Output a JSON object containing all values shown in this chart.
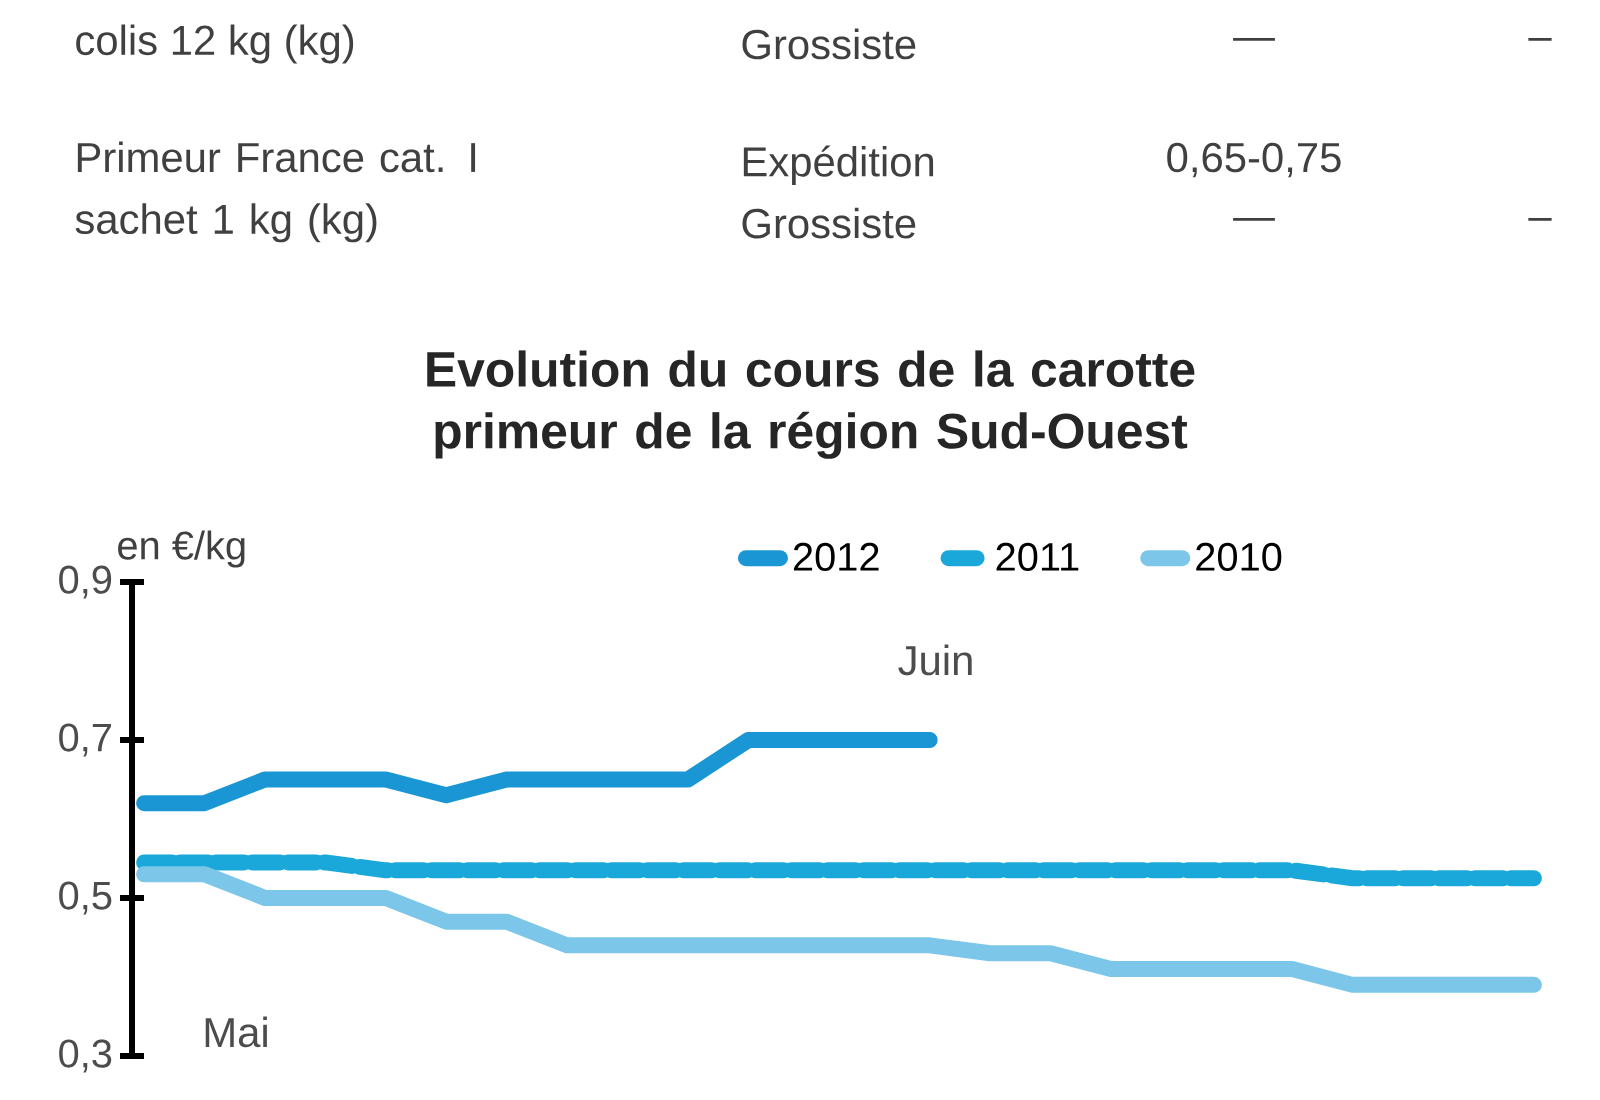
{
  "chart_data": {
    "type": "line",
    "title": "Evolution du cours de la carotte primeur de la région Sud-Ouest",
    "ylabel": "en €/kg",
    "categories": [
      null,
      null,
      null,
      null,
      null,
      null,
      null,
      null,
      null,
      null,
      null,
      null,
      null,
      null,
      null,
      null,
      null,
      null,
      null,
      null,
      null,
      null,
      null,
      null
    ],
    "series": [
      {
        "name": "2012",
        "color": "#1a96d4",
        "line_style": "solid",
        "values": [
          0.62,
          0.62,
          0.65,
          0.65,
          0.65,
          0.63,
          0.65,
          0.65,
          0.65,
          0.65,
          0.7,
          0.7,
          0.7,
          0.7,
          null,
          null,
          null,
          null,
          null,
          null,
          null,
          null,
          null,
          null
        ]
      },
      {
        "name": "2011",
        "color": "#1aa8da",
        "line_style": "dashed",
        "values": [
          0.545,
          0.545,
          0.545,
          0.545,
          0.535,
          0.535,
          0.535,
          0.535,
          0.535,
          0.535,
          0.535,
          0.535,
          0.535,
          0.535,
          0.535,
          0.535,
          0.535,
          0.535,
          0.535,
          0.535,
          0.525,
          0.525,
          0.525,
          0.525
        ]
      },
      {
        "name": "2010",
        "color": "#7cc6ea",
        "line_style": "solid",
        "values": [
          0.53,
          0.53,
          0.5,
          0.5,
          0.5,
          0.47,
          0.47,
          0.44,
          0.44,
          0.44,
          0.44,
          0.44,
          0.44,
          0.44,
          0.43,
          0.43,
          0.41,
          0.41,
          0.41,
          0.41,
          0.39,
          0.39,
          0.39,
          0.39
        ]
      }
    ],
    "ylim": [
      0.3,
      0.9
    ],
    "yticks": [
      {
        "value": 0.3,
        "label": "0,3"
      },
      {
        "value": 0.5,
        "label": "0,5"
      },
      {
        "value": 0.7,
        "label": "0,7"
      },
      {
        "value": 0.9,
        "label": "0,9"
      }
    ],
    "marker": "none",
    "grid": false,
    "legend": "top",
    "annotations": [
      "colis 12 kg (kg)",
      "Grossiste",
      "—",
      "–",
      "Primeur France cat. I sachet 1 kg (kg)",
      "Expédition Grossiste",
      "0,65-0,75",
      "—",
      "–",
      "Mai",
      "Juin"
    ]
  }
}
